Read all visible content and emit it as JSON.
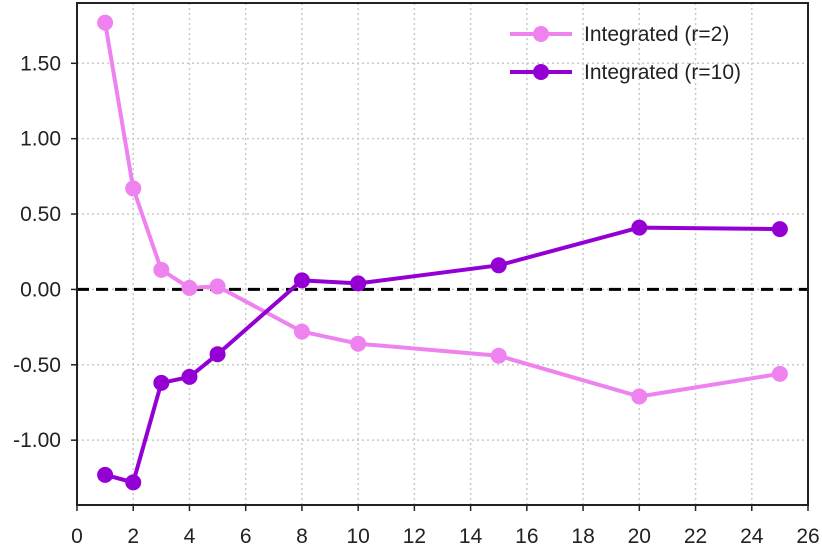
{
  "chart_data": {
    "type": "line",
    "title": "",
    "xlabel": "",
    "ylabel": "",
    "xlim": [
      0,
      26
    ],
    "ylim": [
      -1.43,
      1.9
    ],
    "xticks": [
      0,
      2,
      4,
      6,
      8,
      10,
      12,
      14,
      16,
      18,
      20,
      22,
      24,
      26
    ],
    "yticks": [
      -1.0,
      -0.5,
      0.0,
      0.5,
      1.0,
      1.5
    ],
    "xtick_labels": [
      "0",
      "2",
      "4",
      "6",
      "8",
      "10",
      "12",
      "14",
      "16",
      "18",
      "20",
      "22",
      "24",
      "26"
    ],
    "ytick_labels": [
      "-1.00",
      "-0.50",
      "0.00",
      "0.50",
      "1.00",
      "1.50"
    ],
    "grid": true,
    "reference_line": {
      "y": 0,
      "style": "dashed",
      "color": "#000000"
    },
    "legend_position": "top-right",
    "series": [
      {
        "name": "Integrated (r=2)",
        "color": "#ee82ee",
        "x": [
          1,
          2,
          3,
          4,
          5,
          8,
          10,
          15,
          20,
          25
        ],
        "y": [
          1.77,
          0.67,
          0.13,
          0.01,
          0.02,
          -0.28,
          -0.36,
          -0.44,
          -0.71,
          -0.56
        ]
      },
      {
        "name": "Integrated (r=10)",
        "color": "#9400d3",
        "x": [
          1,
          2,
          3,
          4,
          5,
          8,
          10,
          15,
          20,
          25
        ],
        "y": [
          -1.23,
          -1.28,
          -0.62,
          -0.58,
          -0.43,
          0.06,
          0.04,
          0.16,
          0.41,
          0.4
        ]
      }
    ]
  }
}
